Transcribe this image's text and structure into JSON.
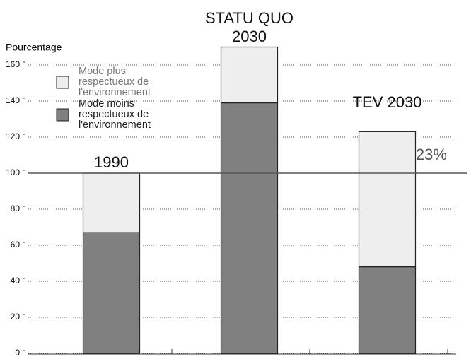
{
  "chart_data": {
    "type": "stacked_bar",
    "y_label": "Pourcentage",
    "categories": [
      "1990",
      "STATU QUO 2030",
      "TEV 2030"
    ],
    "series": [
      {
        "name": "Mode moins respectueux de l'environnement",
        "color": "#808080",
        "values": [
          67,
          139,
          48
        ]
      },
      {
        "name": "Mode plus respectueux de l'environnement",
        "color": "#eeeeee",
        "values": [
          33,
          31,
          75
        ]
      }
    ],
    "ylim": [
      0,
      170
    ],
    "yticks": [
      0,
      20,
      40,
      60,
      80,
      100,
      120,
      140,
      160
    ],
    "grid": true,
    "reference_line": 100,
    "annotation": "+23%"
  }
}
